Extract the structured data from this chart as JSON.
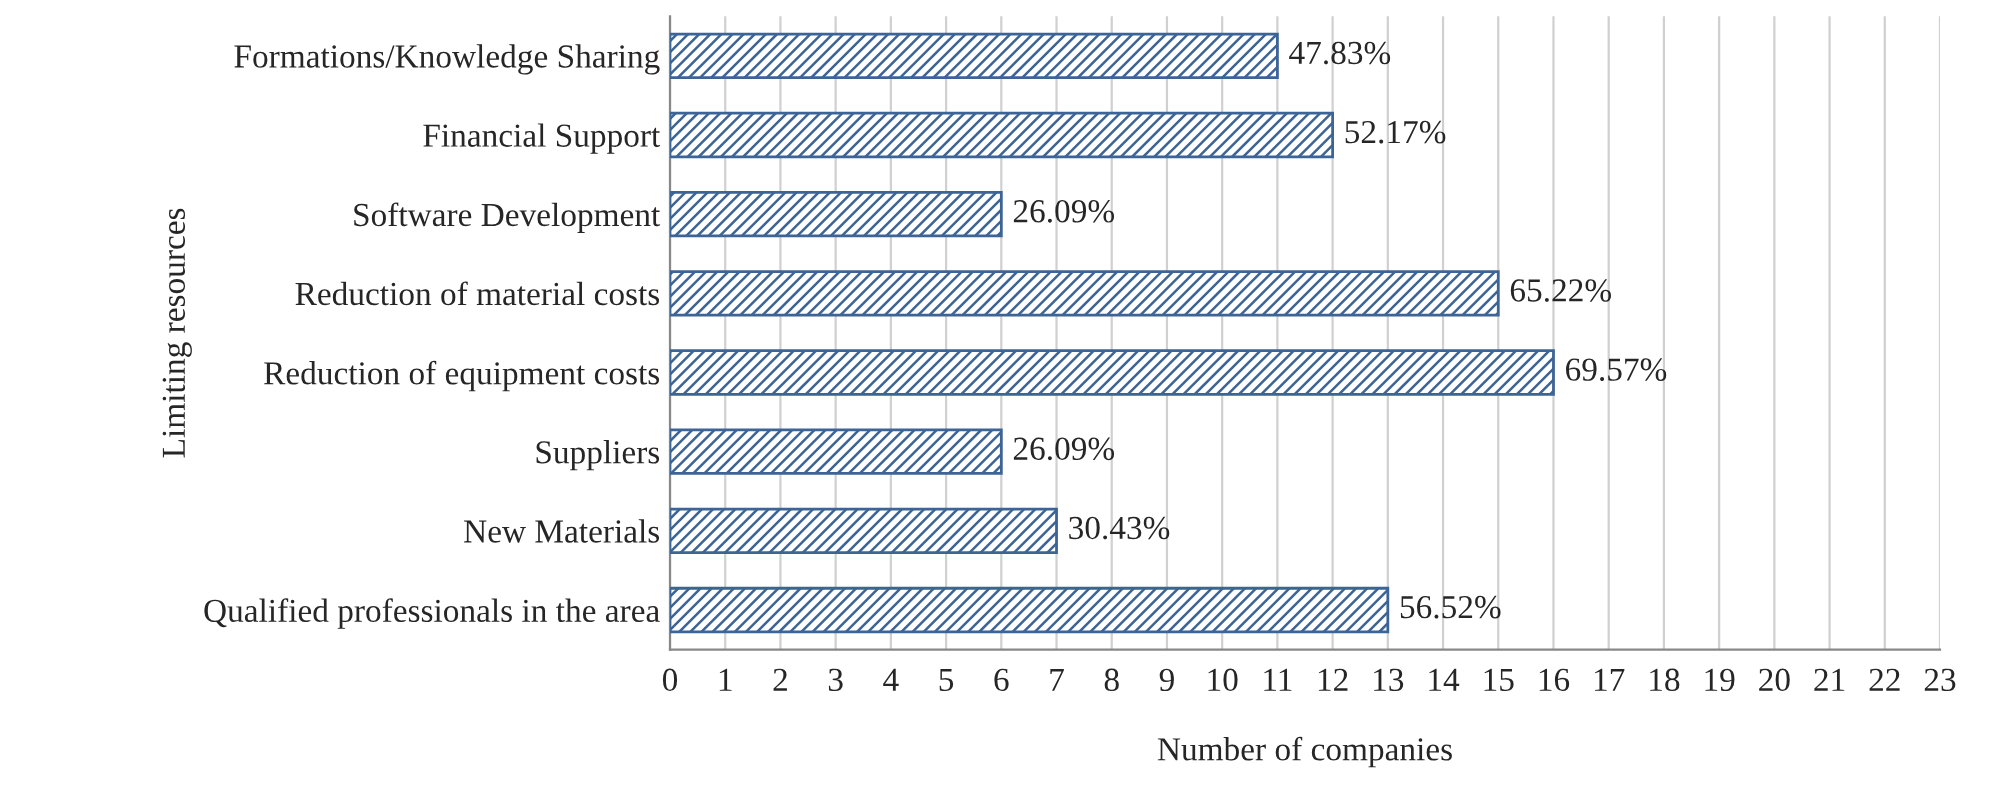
{
  "chart_data": {
    "type": "bar",
    "orientation": "horizontal",
    "xlabel": "Number of companies",
    "ylabel": "Limiting resources",
    "categories": [
      "Formations/Knowledge Sharing",
      "Financial Support",
      "Software Development",
      "Reduction of material costs",
      "Reduction of equipment costs",
      "Suppliers",
      "New Materials",
      "Qualified professionals in the area"
    ],
    "values": [
      11,
      12,
      6,
      15,
      16,
      6,
      7,
      13
    ],
    "annotations": [
      {
        "text": "47.83%",
        "x": 11,
        "y": "Formations/Knowledge Sharing"
      },
      {
        "text": "52.17%",
        "x": 12,
        "y": "Financial Support"
      },
      {
        "text": "26.09%",
        "x": 6,
        "y": "Software Development"
      },
      {
        "text": "65.22%",
        "x": 15,
        "y": "Reduction of material costs"
      },
      {
        "text": "69.57%",
        "x": 16,
        "y": "Reduction of equipment costs"
      },
      {
        "text": "26.09%",
        "x": 6,
        "y": "Suppliers"
      },
      {
        "text": "30.43%",
        "x": 7,
        "y": "New Materials"
      },
      {
        "text": "56.52%",
        "x": 13,
        "y": "Qualified professionals in the area"
      }
    ],
    "color": "#3d6496",
    "xlim": [
      0,
      23
    ],
    "xticks": [
      0,
      1,
      2,
      3,
      4,
      5,
      6,
      7,
      8,
      9,
      10,
      11,
      12,
      13,
      14,
      15,
      16,
      17,
      18,
      19,
      20,
      21,
      22,
      23
    ],
    "grid": "x",
    "legend": false
  }
}
